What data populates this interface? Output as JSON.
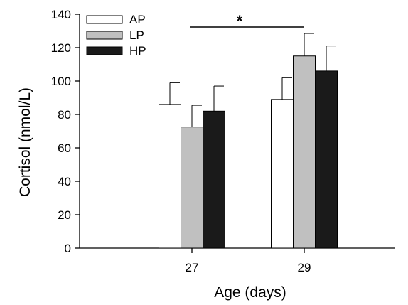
{
  "chart_data": {
    "type": "bar",
    "xlabel": "Age (days)",
    "ylabel": "Cortisol (nmol/L)",
    "ylim": [
      0,
      140
    ],
    "yticks": [
      0,
      20,
      40,
      60,
      80,
      100,
      120,
      140
    ],
    "categories": [
      "27",
      "29"
    ],
    "series": [
      {
        "name": "AP",
        "values": [
          86,
          89
        ],
        "errors": [
          13,
          13
        ],
        "color": "#ffffff"
      },
      {
        "name": "LP",
        "values": [
          72.5,
          115
        ],
        "errors": [
          13,
          13.5
        ],
        "color": "#c0c0c0"
      },
      {
        "name": "HP",
        "values": [
          82,
          106
        ],
        "errors": [
          15,
          15
        ],
        "color": "#1a1a1a"
      }
    ],
    "legend_position": "top-left",
    "grid": false,
    "annotations": [
      {
        "text": "*",
        "type": "significance-bracket",
        "from_category": "27",
        "to_category": "29"
      }
    ]
  }
}
